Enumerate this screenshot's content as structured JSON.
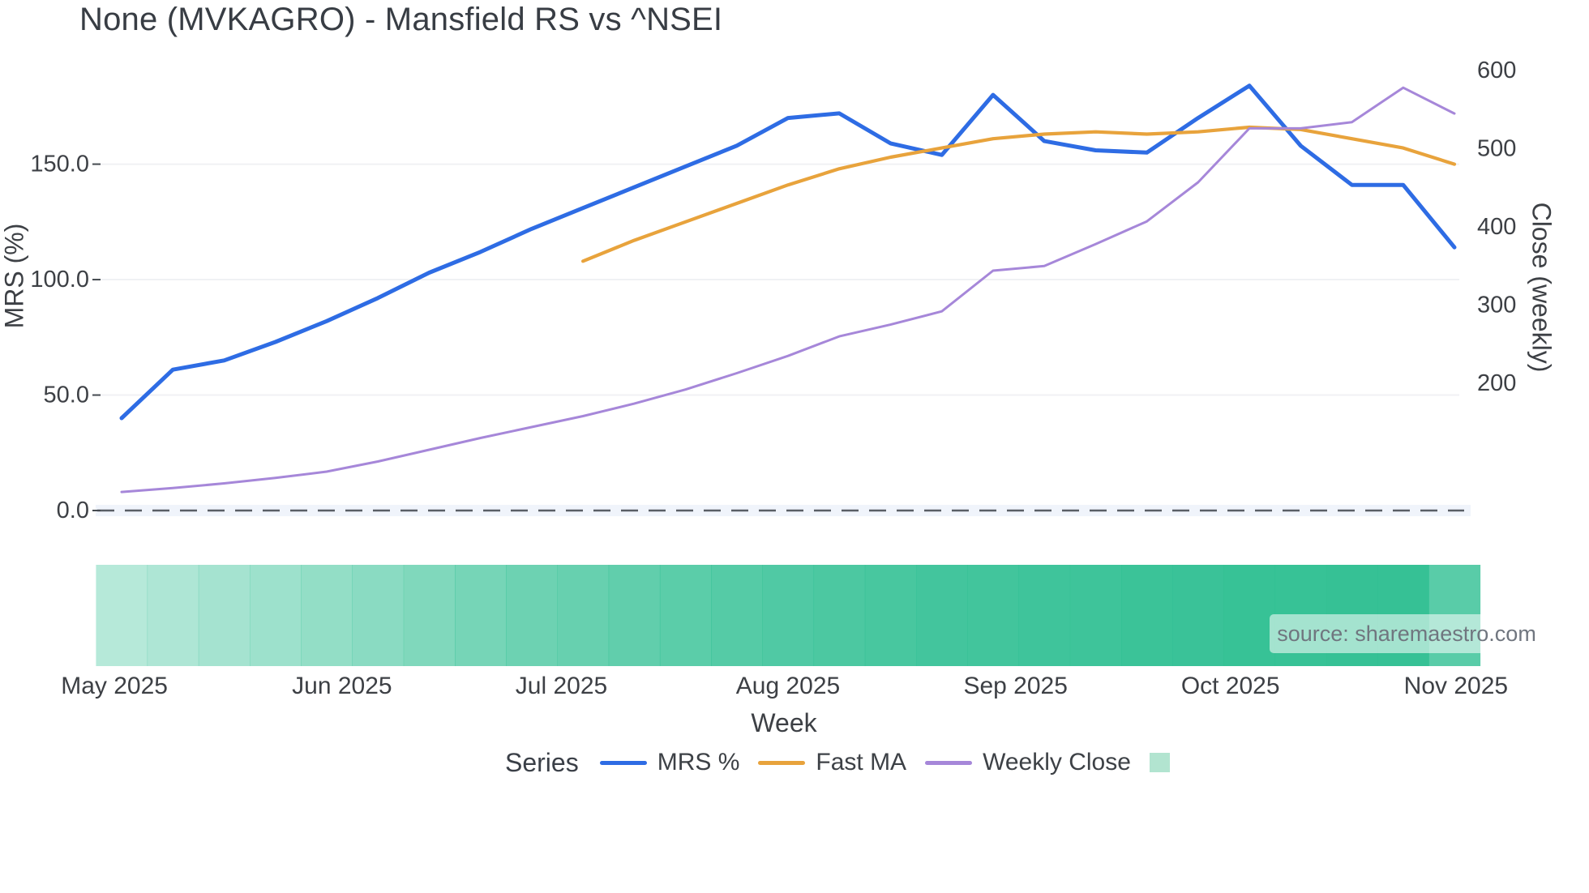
{
  "title": "None (MVKAGRO) - Mansfield RS vs ^NSEI",
  "source_note": "source: sharemaestro.com",
  "chart_data": {
    "type": "line",
    "title": "None (MVKAGRO) - Mansfield RS vs ^NSEI",
    "x_axis": {
      "title": "Week",
      "num_weeks": 27,
      "ticks": [
        {
          "label": "May 2025",
          "week": -0.14
        },
        {
          "label": "Jun 2025",
          "week": 4.3
        },
        {
          "label": "Jul 2025",
          "week": 8.58
        },
        {
          "label": "Aug 2025",
          "week": 13.0
        },
        {
          "label": "Sep 2025",
          "week": 17.44
        },
        {
          "label": "Oct 2025",
          "week": 21.63
        },
        {
          "label": "Nov 2025",
          "week": 26.03
        }
      ]
    },
    "y_left": {
      "title": "MRS (%)",
      "tick_values": [
        0,
        50,
        100,
        150
      ],
      "tick_labels": [
        "0.0",
        "50.0",
        "100.0",
        "150.0"
      ],
      "range": [
        0,
        202
      ]
    },
    "y_right": {
      "title": "Close (weekly)",
      "tick_values": [
        200,
        300,
        400,
        500,
        600
      ],
      "tick_labels": [
        "200",
        "300",
        "400",
        "500",
        "600"
      ],
      "range": [
        37,
        633
      ]
    },
    "grid": "horizontal",
    "zero_line": {
      "value": 0,
      "style": "dashed",
      "color": "#5a5f66"
    },
    "series": [
      {
        "id": "mrs-percent",
        "name": "MRS %",
        "axis": "left",
        "color": "#2e6ce4",
        "width": 5,
        "start_week": 0,
        "values": [
          40,
          61,
          65,
          73,
          82,
          92,
          103,
          112,
          122,
          131,
          140,
          149,
          158,
          170,
          172,
          159,
          154,
          180,
          160,
          156,
          155,
          170,
          184,
          158,
          141,
          141,
          114
        ]
      },
      {
        "id": "fast-ma",
        "name": "Fast MA",
        "axis": "left",
        "color": "#e8a33c",
        "width": 4.2,
        "start_week": 9,
        "values": [
          108,
          117,
          125,
          133,
          141,
          148,
          153,
          157,
          161,
          163,
          164,
          163,
          164,
          166,
          165,
          161,
          157,
          150
        ]
      },
      {
        "id": "weekly-close",
        "name": "Weekly Close",
        "axis": "right",
        "color": "#a687d9",
        "width": 3,
        "start_week": 0,
        "values": [
          61,
          66,
          72,
          79,
          87,
          100,
          115,
          130,
          144,
          158,
          174,
          192,
          213,
          235,
          260,
          275,
          292,
          344,
          350,
          378,
          407,
          457,
          526,
          526,
          534,
          578,
          545
        ]
      }
    ],
    "band": {
      "color": "#2fbf92",
      "opacities": [
        0.35,
        0.39,
        0.43,
        0.47,
        0.52,
        0.56,
        0.61,
        0.66,
        0.7,
        0.73,
        0.76,
        0.79,
        0.82,
        0.84,
        0.86,
        0.88,
        0.9,
        0.91,
        0.92,
        0.93,
        0.94,
        0.95,
        0.96,
        0.96,
        0.97,
        0.97,
        0.8
      ]
    },
    "legend": {
      "title": "Series",
      "items": [
        {
          "label": "MRS %",
          "color": "#2e6ce4",
          "type": "line"
        },
        {
          "label": "Fast MA",
          "color": "#e8a33c",
          "type": "line"
        },
        {
          "label": "Weekly Close",
          "color": "#a687d9",
          "type": "line"
        },
        {
          "label": "",
          "color": "#b2e4d0",
          "type": "square"
        }
      ]
    }
  }
}
